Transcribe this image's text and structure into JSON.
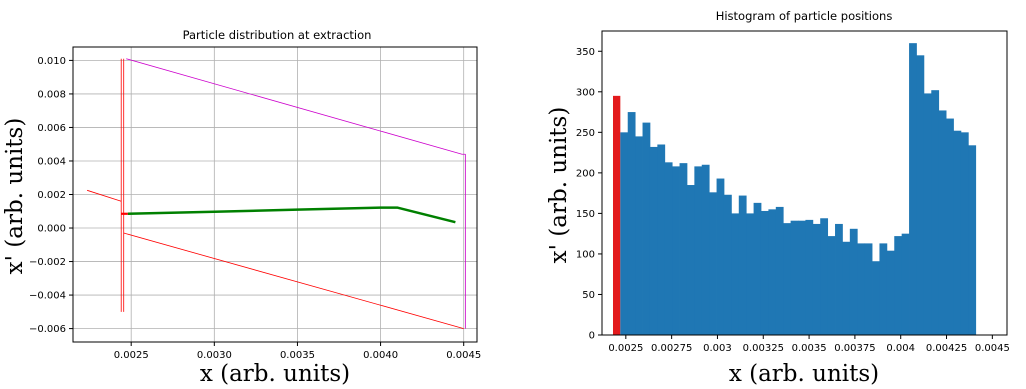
{
  "chart_data": [
    {
      "type": "line",
      "title": "Particle distribution at extraction",
      "xlabel": "x (arb. units)",
      "ylabel": "x' (arb. units)",
      "xlim": [
        0.00215,
        0.00458
      ],
      "ylim": [
        -0.0068,
        0.0108
      ],
      "grid": true,
      "x_ticks": [
        0.0025,
        0.003,
        0.0035,
        0.004,
        0.0045
      ],
      "x_tick_labels": [
        "0.0025",
        "0.0030",
        "0.0035",
        "0.0040",
        "0.0045"
      ],
      "y_ticks": [
        0.01,
        0.008,
        0.006,
        0.004,
        0.002,
        0.0,
        -0.002,
        -0.004,
        -0.006
      ],
      "y_tick_labels": [
        "0.010",
        "0.008",
        "0.006",
        "0.004",
        "0.002",
        "0.000",
        "−0.002",
        "−0.004",
        "−0.006"
      ],
      "series": [
        {
          "color": "#ff0000",
          "width": 0.8,
          "points": [
            [
              0.00244,
              -0.005
            ],
            [
              0.00244,
              0.0101
            ]
          ]
        },
        {
          "color": "#ff0000",
          "width": 0.8,
          "points": [
            [
              0.002455,
              -0.005
            ],
            [
              0.002455,
              0.0101
            ]
          ]
        },
        {
          "color": "#ff0000",
          "width": 0.8,
          "points": [
            [
              0.002235,
              0.00225
            ],
            [
              0.00244,
              0.0016
            ]
          ]
        },
        {
          "color": "#ff0000",
          "width": 0.8,
          "points": [
            [
              0.002455,
              -0.0003
            ],
            [
              0.0045,
              -0.006
            ]
          ]
        },
        {
          "color": "#cc00cc",
          "width": 0.8,
          "points": [
            [
              0.00247,
              0.0101
            ],
            [
              0.00449,
              0.0044
            ],
            [
              0.00451,
              0.0044
            ],
            [
              0.00451,
              -0.006
            ]
          ]
        },
        {
          "color": "#ff0000",
          "width": 2.2,
          "points": [
            [
              0.00244,
              0.00085
            ],
            [
              0.00248,
              0.00085
            ]
          ]
        },
        {
          "color": "#008000",
          "width": 2.5,
          "points": [
            [
              0.00248,
              0.00085
            ],
            [
              0.003,
              0.00097
            ],
            [
              0.0035,
              0.0011
            ],
            [
              0.004,
              0.00122
            ],
            [
              0.0041,
              0.00122
            ],
            [
              0.00445,
              0.00035
            ]
          ]
        }
      ]
    },
    {
      "type": "bar",
      "title": "Histogram of particle positions",
      "xlabel": "x (arb. units)",
      "ylabel": "x' (arb. units)",
      "xlim": [
        0.00237,
        0.00458
      ],
      "ylim": [
        0,
        375
      ],
      "grid": false,
      "x_ticks": [
        0.0025,
        0.00275,
        0.003,
        0.00325,
        0.0035,
        0.00375,
        0.004,
        0.00425,
        0.0045
      ],
      "x_tick_labels": [
        "0.0025",
        "0.00275",
        "0.003",
        "0.00325",
        "0.0035",
        "0.00375",
        "0.004",
        "0.00425",
        "0.0045"
      ],
      "y_ticks": [
        0,
        50,
        100,
        150,
        200,
        250,
        300,
        350
      ],
      "y_tick_labels": [
        "0",
        "50",
        "100",
        "150",
        "200",
        "250",
        "300",
        "350"
      ],
      "highlight_bar": {
        "x0": 0.00243,
        "x1": 0.00247,
        "value": 295,
        "color": "#e31a1c"
      },
      "bar_color": "#1f77b4",
      "bin_start": 0.00247,
      "bin_width": 4.04e-05,
      "values": [
        250,
        275,
        245,
        262,
        232,
        235,
        213,
        208,
        212,
        185,
        208,
        210,
        176,
        193,
        173,
        150,
        172,
        150,
        163,
        153,
        155,
        158,
        138,
        141,
        141,
        142,
        137,
        144,
        122,
        137,
        115,
        131,
        113,
        113,
        91,
        113,
        104,
        122,
        125,
        360,
        345,
        298,
        302,
        277,
        267,
        252,
        250,
        234
      ]
    }
  ]
}
